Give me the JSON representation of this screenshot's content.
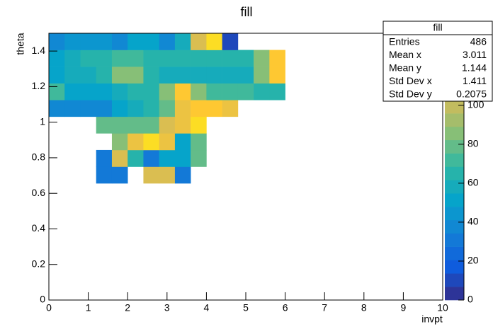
{
  "chart_data": {
    "type": "heatmap",
    "title": "fill",
    "x_label": "invpt",
    "y_label": "theta",
    "xlim": [
      0,
      10
    ],
    "ylim": [
      0,
      1.5
    ],
    "xticks": [
      0,
      1,
      2,
      3,
      4,
      5,
      6,
      7,
      8,
      9,
      10
    ],
    "yticks": [
      0,
      0.2,
      0.4,
      0.6,
      0.8,
      1,
      1.2,
      1.4
    ],
    "zlim": [
      0,
      137
    ],
    "zticks": [
      0,
      20,
      40,
      60,
      80,
      100,
      120
    ],
    "palette": "bird",
    "xbins": [
      0,
      0.4,
      0.8,
      1.2,
      1.6,
      2.0,
      2.4,
      2.8,
      3.2,
      3.6,
      4.0,
      4.4,
      4.8,
      5.2,
      5.6,
      6.0
    ],
    "ybins": [
      0.65625,
      0.75,
      0.84375,
      0.9375,
      1.03125,
      1.125,
      1.21875,
      1.3125,
      1.40625,
      1.5
    ],
    "z": [
      [
        null,
        null,
        null,
        28,
        28,
        null,
        105,
        105,
        30,
        null,
        null,
        null,
        null,
        null,
        null
      ],
      [
        null,
        null,
        null,
        28,
        108,
        62,
        32,
        50,
        48,
        80,
        null,
        null,
        null,
        null,
        null
      ],
      [
        null,
        null,
        null,
        null,
        85,
        115,
        130,
        112,
        52,
        80,
        null,
        null,
        null,
        null,
        null
      ],
      [
        null,
        null,
        null,
        80,
        80,
        80,
        80,
        105,
        110,
        130,
        null,
        null,
        null,
        null,
        null
      ],
      [
        38,
        38,
        40,
        40,
        50,
        55,
        64,
        78,
        115,
        122,
        122,
        112,
        null,
        null,
        null
      ],
      [
        72,
        50,
        50,
        50,
        55,
        62,
        62,
        88,
        118,
        88,
        75,
        75,
        75,
        66,
        66
      ],
      [
        52,
        60,
        60,
        66,
        85,
        85,
        65,
        60,
        60,
        60,
        60,
        60,
        60,
        88,
        118
      ],
      [
        48,
        55,
        68,
        68,
        72,
        72,
        65,
        62,
        62,
        62,
        62,
        62,
        62,
        88,
        118
      ],
      [
        35,
        45,
        45,
        45,
        38,
        50,
        48,
        40,
        55,
        105,
        130,
        8,
        null,
        null,
        null
      ]
    ],
    "stats": {
      "title": "fill",
      "rows": [
        {
          "name": "Entries",
          "value": 486
        },
        {
          "name": "Mean x",
          "value": 3.011
        },
        {
          "name": "Mean y",
          "value": 1.144
        },
        {
          "name": "Std Dev x",
          "value": 1.411
        },
        {
          "name": "Std Dev y",
          "value": 0.2075
        }
      ]
    }
  }
}
